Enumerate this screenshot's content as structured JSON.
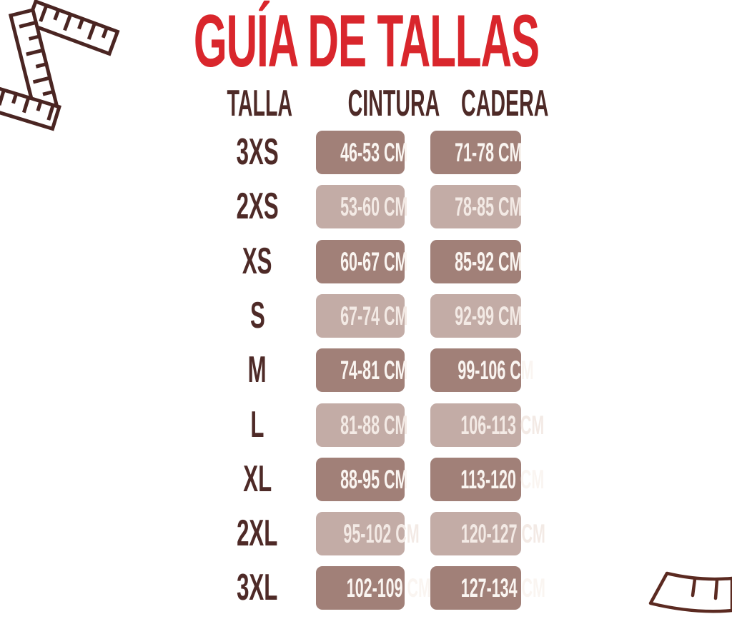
{
  "title": "GUÍA DE TALLAS",
  "columns": [
    "TALLA",
    "CINTURA",
    "CADERA"
  ],
  "rows": [
    {
      "size": "3XS",
      "cintura": "46-53 CM",
      "cadera": "71-78 CM",
      "shade": "dark"
    },
    {
      "size": "2XS",
      "cintura": "53-60 CM",
      "cadera": "78-85 CM",
      "shade": "light"
    },
    {
      "size": "XS",
      "cintura": "60-67 CM",
      "cadera": "85-92 CM",
      "shade": "dark"
    },
    {
      "size": "S",
      "cintura": "67-74 CM",
      "cadera": "92-99 CM",
      "shade": "light"
    },
    {
      "size": "M",
      "cintura": "74-81 CM",
      "cadera": "99-106 CM",
      "shade": "dark"
    },
    {
      "size": "L",
      "cintura": "81-88 CM",
      "cadera": "106-113 CM",
      "shade": "light"
    },
    {
      "size": "XL",
      "cintura": "88-95 CM",
      "cadera": "113-120 CM",
      "shade": "dark"
    },
    {
      "size": "2XL",
      "cintura": "95-102 CM",
      "cadera": "120-127 CM",
      "shade": "light"
    },
    {
      "size": "3XL",
      "cintura": "102-109 CM",
      "cadera": "127-134 CM",
      "shade": "dark"
    }
  ],
  "icons": {
    "top_left": "measuring-tape-icon",
    "bottom_right": "measuring-tape-end-icon"
  },
  "colors": {
    "title_red": "#d9262c",
    "heading_maroon": "#4e2a27",
    "cell_dark_bg": "#a18078",
    "cell_light_bg": "#c3aca6",
    "cell_dark_text": "#faf5f1",
    "cell_light_text": "#f3eae5",
    "tape_outline": "#4a2522",
    "tape_end_outline": "#5b2a21",
    "background": "#ffffff"
  },
  "chart_data": {
    "type": "table",
    "title": "GUÍA DE TALLAS",
    "columns": [
      "TALLA",
      "CINTURA",
      "CADERA"
    ],
    "rows": [
      [
        "3XS",
        "46-53 CM",
        "71-78 CM"
      ],
      [
        "2XS",
        "53-60 CM",
        "78-85 CM"
      ],
      [
        "XS",
        "60-67 CM",
        "85-92 CM"
      ],
      [
        "S",
        "67-74 CM",
        "92-99 CM"
      ],
      [
        "M",
        "74-81 CM",
        "99-106 CM"
      ],
      [
        "L",
        "81-88 CM",
        "106-113 CM"
      ],
      [
        "XL",
        "88-95 CM",
        "113-120 CM"
      ],
      [
        "2XL",
        "95-102 CM",
        "120-127 CM"
      ],
      [
        "3XL",
        "102-109 CM",
        "127-134 CM"
      ]
    ]
  }
}
